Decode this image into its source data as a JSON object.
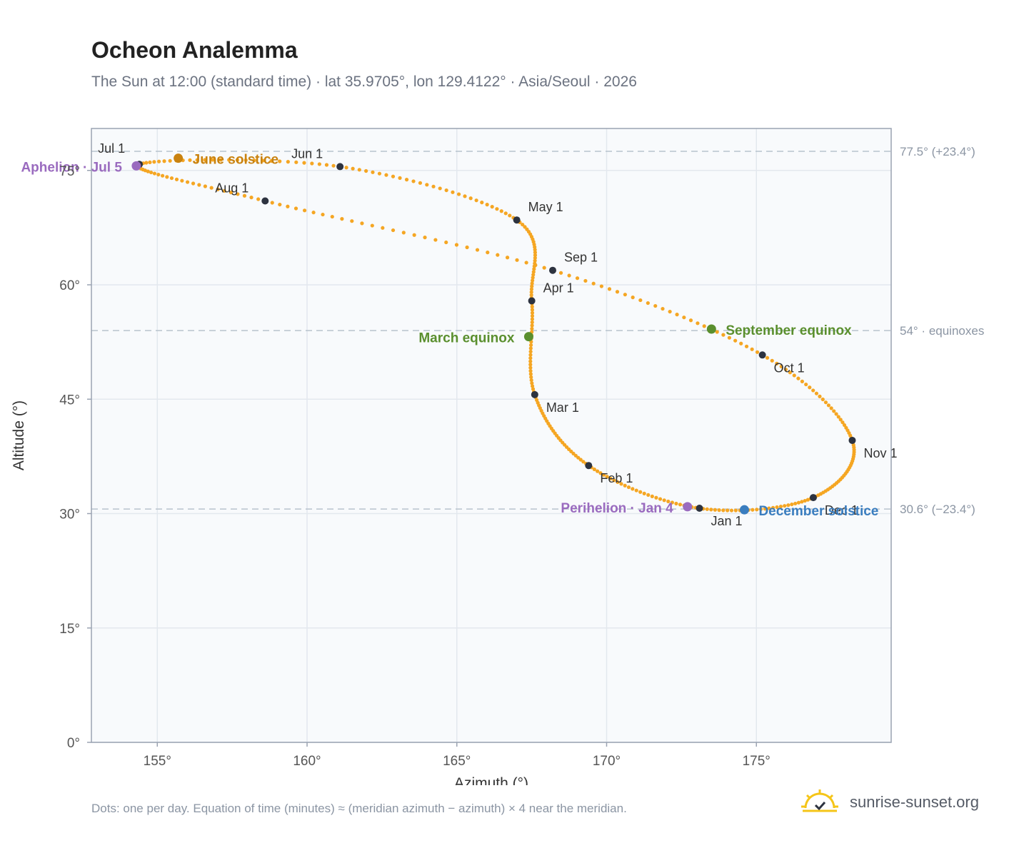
{
  "header": {
    "title": "Ocheon Analemma",
    "subtitle": "The Sun at 12:00 (standard time) · lat 35.9705°, lon 129.4122° · Asia/Seoul · 2026"
  },
  "footer": {
    "note": "Dots: one per day. Equation of time (minutes) ≈ (meridian azimuth − azimuth) × 4 near the meridian.",
    "brand": "sunrise-sunset.org"
  },
  "chart_data": {
    "type": "scatter",
    "xlabel": "Azimuth (°)",
    "ylabel": "Altitude (°)",
    "xlim": [
      152.8,
      179.5
    ],
    "ylim": [
      0,
      80.5
    ],
    "xticks": [
      155,
      160,
      165,
      170,
      175
    ],
    "yticks": [
      0,
      15,
      30,
      45,
      60,
      75
    ],
    "x_tick_labels": [
      "155°",
      "160°",
      "165°",
      "170°",
      "175°"
    ],
    "y_tick_labels": [
      "0°",
      "15°",
      "30°",
      "45°",
      "60°",
      "75°"
    ],
    "grid": true,
    "colors": {
      "curve": "#f5a623",
      "month_marker": "#2d3340",
      "solstice_june": "#c9820f",
      "solstice_december": "#3a7dbf",
      "equinox": "#5a8f2e",
      "apsis": "#9a6bbf",
      "reference_line": "#b8c3cd",
      "plot_bg": "#f8fafc",
      "frame": "#9aa3b2"
    },
    "reference_lines": [
      {
        "y": 77.5,
        "label": "77.5° (+23.4°)"
      },
      {
        "y": 54,
        "label": "54° · equinoxes"
      },
      {
        "y": 30.6,
        "label": "30.6° (−23.4°)"
      }
    ],
    "month_markers": [
      {
        "label": "Jan 1",
        "x": 173.1,
        "y": 30.7
      },
      {
        "label": "Feb 1",
        "x": 169.4,
        "y": 36.3
      },
      {
        "label": "Mar 1",
        "x": 167.6,
        "y": 45.6
      },
      {
        "label": "Apr 1",
        "x": 167.5,
        "y": 57.9
      },
      {
        "label": "May 1",
        "x": 167.0,
        "y": 68.5
      },
      {
        "label": "Jun 1",
        "x": 161.1,
        "y": 75.5
      },
      {
        "label": "Jul 1",
        "x": 154.4,
        "y": 75.8
      },
      {
        "label": "Aug 1",
        "x": 158.6,
        "y": 71.0
      },
      {
        "label": "Sep 1",
        "x": 168.2,
        "y": 61.9
      },
      {
        "label": "Oct 1",
        "x": 175.2,
        "y": 50.8
      },
      {
        "label": "Nov 1",
        "x": 178.2,
        "y": 39.6
      },
      {
        "label": "Dec 1",
        "x": 176.9,
        "y": 32.1
      }
    ],
    "events": [
      {
        "label": "June solstice",
        "x": 155.7,
        "y": 76.6,
        "kind": "solstice_june"
      },
      {
        "label": "December solstice",
        "x": 174.6,
        "y": 30.5,
        "kind": "solstice_december"
      },
      {
        "label": "March equinox",
        "x": 167.4,
        "y": 53.2,
        "kind": "equinox"
      },
      {
        "label": "September equinox",
        "x": 173.5,
        "y": 54.2,
        "kind": "equinox"
      },
      {
        "label": "Aphelion · Jul 5",
        "x": 154.3,
        "y": 75.6,
        "kind": "apsis"
      },
      {
        "label": "Perihelion · Jan 4",
        "x": 172.7,
        "y": 30.9,
        "kind": "apsis"
      }
    ]
  }
}
